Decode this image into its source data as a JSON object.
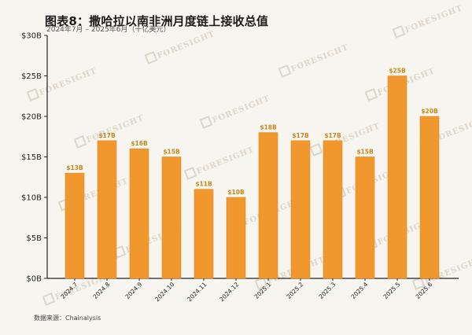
{
  "header": {
    "title": "图表8：撒哈拉以南非洲月度链上接收总值",
    "subtitle": "2024年7月 – 2025年6月（十亿美元）"
  },
  "footer": {
    "source": "数据来源：Chainalysis"
  },
  "watermark": {
    "text": "FORESIGHT"
  },
  "colors": {
    "bar": "#f0982e",
    "bar_edge": "#dd8a25",
    "data_label": "#c8871a",
    "axis": "#222222",
    "background": "#f7f5f0"
  },
  "chart_data": {
    "type": "bar",
    "title": "图表8：撒哈拉以南非洲月度链上接收总值",
    "subtitle": "2024年7月 – 2025年6月（十亿美元）",
    "xlabel": "",
    "ylabel": "",
    "categories": [
      "2024.7",
      "2024.8",
      "2024.9",
      "2024.10",
      "2024.11",
      "2024.12",
      "2025.1",
      "2025.2",
      "2025.3",
      "2025.4",
      "2025.5",
      "2025.6"
    ],
    "values": [
      13,
      17,
      16,
      15,
      11,
      10,
      18,
      17,
      17,
      15,
      25,
      20
    ],
    "data_labels": [
      "$13B",
      "$17B",
      "$16B",
      "$15B",
      "$11B",
      "$10B",
      "$18B",
      "$17B",
      "$17B",
      "$15B",
      "$25B",
      "$20B"
    ],
    "ylim": [
      0,
      30
    ],
    "yticks": [
      0,
      5,
      10,
      15,
      20,
      25,
      30
    ],
    "ytick_labels": [
      "$0B",
      "$5B",
      "$10B",
      "$15B",
      "$20B",
      "$25B",
      "$30B"
    ],
    "grid": false,
    "legend": "none",
    "unit": "十亿美元"
  }
}
